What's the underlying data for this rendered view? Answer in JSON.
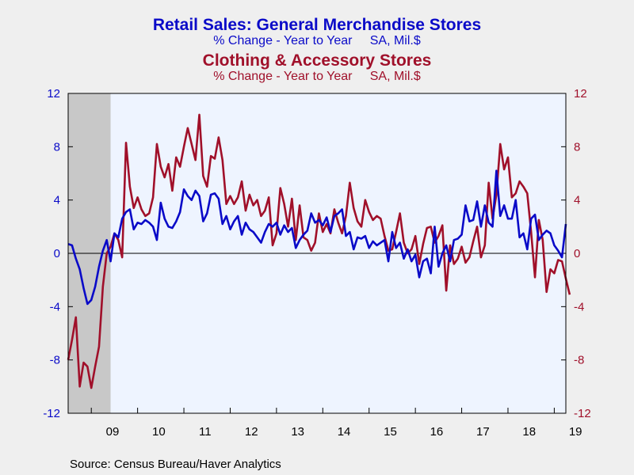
{
  "chart_data": {
    "type": "line",
    "title": "Retail Sales: General Merchandise Stores",
    "subtitle": "% Change - Year to Year     SA, Mil.$",
    "title2": "Clothing & Accessory Stores",
    "subtitle2": "% Change - Year to Year     SA, Mil.$",
    "source": "Source:  Census Bureau/Haver Analytics",
    "ylim": [
      -12,
      12
    ],
    "y_ticks": [
      12,
      8,
      4,
      0,
      -4,
      -8,
      -12
    ],
    "y_tick_labels": [
      "12",
      "8",
      "4",
      "0",
      "-4",
      "-8",
      "-12"
    ],
    "x_tick_labels": [
      "09",
      "10",
      "11",
      "12",
      "13",
      "14",
      "15",
      "16",
      "17",
      "18",
      "19"
    ],
    "x_start": "2008-07",
    "x_end": "2019-12",
    "recession": {
      "start": "2008-07",
      "end": "2009-06"
    },
    "grid": false,
    "legend": "titles at top, colored by series",
    "colors": {
      "general": "#0a0ac8",
      "clothing": "#a0102a",
      "recession": "#c8c8c8",
      "plot_bg": "#eef4ff"
    },
    "series": [
      {
        "name": "Retail Sales: General Merchandise Stores",
        "values": [
          0.7,
          0.6,
          -0.4,
          -1.2,
          -2.6,
          -3.8,
          -3.5,
          -2.5,
          -1.0,
          0.2,
          1.0,
          -0.6,
          1.5,
          1.2,
          2.6,
          3.1,
          3.3,
          1.8,
          2.3,
          2.2,
          2.5,
          2.3,
          2.0,
          1.0,
          3.8,
          2.6,
          2.0,
          1.9,
          2.4,
          3.1,
          4.8,
          4.3,
          4.0,
          4.7,
          4.3,
          2.4,
          3.0,
          4.4,
          4.5,
          4.1,
          2.2,
          2.8,
          1.8,
          2.4,
          2.8,
          1.4,
          2.3,
          1.8,
          1.6,
          1.2,
          0.8,
          1.6,
          2.2,
          2.0,
          2.3,
          1.4,
          2.1,
          1.6,
          1.9,
          0.4,
          1.0,
          1.4,
          1.7,
          3.0,
          2.3,
          2.5,
          2.1,
          2.7,
          1.6,
          2.8,
          3.0,
          3.3,
          1.3,
          1.6,
          0.3,
          1.2,
          1.1,
          1.3,
          0.4,
          0.9,
          0.6,
          0.8,
          1.0,
          -0.6,
          1.6,
          0.4,
          0.8,
          -0.4,
          0.3,
          -0.6,
          -0.1,
          -1.8,
          -0.6,
          -0.4,
          -1.5,
          2.0,
          -1.0,
          0.0,
          0.6,
          -0.6,
          1.0,
          1.1,
          1.4,
          3.6,
          2.4,
          2.5,
          3.9,
          2.0,
          3.6,
          2.3,
          2.0,
          6.2,
          2.8,
          3.6,
          2.6,
          2.6,
          4.0,
          1.2,
          1.5,
          0.3,
          2.6,
          2.9,
          1.0,
          1.4,
          1.7,
          1.5,
          0.6,
          0.2,
          -0.3,
          2.2
        ]
      },
      {
        "name": "Clothing & Accessory Stores",
        "values": [
          -8.0,
          -6.5,
          -4.8,
          -10.0,
          -8.2,
          -8.5,
          -10.1,
          -8.5,
          -7.0,
          -2.5,
          0.0,
          0.5,
          1.5,
          1.0,
          -0.3,
          8.3,
          5.0,
          3.4,
          4.2,
          3.3,
          2.8,
          3.0,
          4.2,
          8.2,
          6.5,
          5.7,
          6.7,
          4.7,
          7.2,
          6.5,
          8.0,
          9.4,
          8.2,
          7.0,
          10.4,
          5.8,
          5.0,
          7.3,
          7.1,
          8.7,
          7.0,
          3.7,
          4.3,
          3.7,
          4.2,
          5.4,
          3.2,
          4.4,
          3.6,
          4.0,
          2.8,
          3.2,
          4.2,
          0.6,
          1.5,
          4.9,
          3.7,
          2.0,
          4.1,
          1.0,
          3.6,
          1.2,
          1.0,
          0.2,
          0.8,
          3.0,
          1.6,
          2.2,
          1.5,
          3.3,
          2.3,
          1.5,
          2.8,
          5.3,
          3.4,
          2.4,
          2.0,
          4.0,
          3.1,
          2.5,
          2.8,
          2.6,
          1.3,
          0.2,
          0.3,
          1.6,
          3.0,
          0.8,
          0.0,
          0.3,
          1.3,
          -0.8,
          0.7,
          1.9,
          2.0,
          0.8,
          1.3,
          2.1,
          -2.8,
          0.6,
          -0.8,
          -0.4,
          0.5,
          -0.7,
          -0.3,
          0.9,
          2.0,
          -0.3,
          0.6,
          5.3,
          2.6,
          4.4,
          8.2,
          6.3,
          7.2,
          4.2,
          4.5,
          5.4,
          5.0,
          4.5,
          1.6,
          -1.8,
          2.5,
          1.0,
          -2.9,
          -1.2,
          -1.5,
          -0.5,
          -0.6,
          -1.9,
          -3.1
        ]
      }
    ]
  }
}
